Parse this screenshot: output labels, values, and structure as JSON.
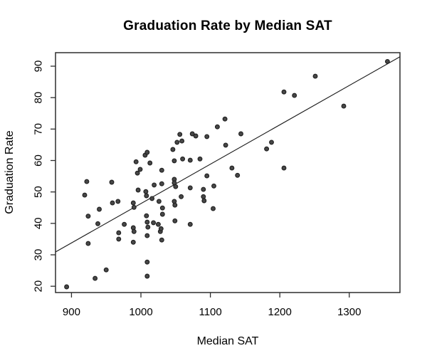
{
  "chart_data": {
    "type": "scatter",
    "title": "Graduation Rate by Median SAT",
    "xlabel": "Median SAT",
    "ylabel": "Graduation Rate",
    "xlim": [
      877,
      1373
    ],
    "ylim": [
      18,
      94.3
    ],
    "x_ticks": [
      900,
      1000,
      1100,
      1200,
      1300
    ],
    "y_ticks": [
      20,
      30,
      40,
      50,
      60,
      70,
      80,
      90
    ],
    "grid": false,
    "legend": "none",
    "marker": "filled-circle",
    "points": [
      [
        893,
        19.8
      ],
      [
        919,
        49
      ],
      [
        922,
        53.3
      ],
      [
        924,
        42.3
      ],
      [
        924,
        33.6
      ],
      [
        934,
        22.5
      ],
      [
        938,
        39.9
      ],
      [
        940,
        44.5
      ],
      [
        950,
        25.2
      ],
      [
        958,
        53.1
      ],
      [
        959,
        46.5
      ],
      [
        967,
        47
      ],
      [
        968,
        37
      ],
      [
        968,
        35
      ],
      [
        976,
        39.7
      ],
      [
        989,
        46.5
      ],
      [
        989,
        38.6
      ],
      [
        989,
        34
      ],
      [
        990,
        45.1
      ],
      [
        990,
        37.4
      ],
      [
        993,
        59.6
      ],
      [
        995,
        56
      ],
      [
        996,
        50.6
      ],
      [
        999,
        57.2
      ],
      [
        1006,
        61.7
      ],
      [
        1007,
        50.1
      ],
      [
        1008,
        48.8
      ],
      [
        1008,
        42.4
      ],
      [
        1009,
        62.6
      ],
      [
        1009,
        40.4
      ],
      [
        1009,
        36.1
      ],
      [
        1009,
        27.7
      ],
      [
        1009,
        23.2
      ],
      [
        1010,
        38.8
      ],
      [
        1013,
        59.2
      ],
      [
        1016,
        47.9
      ],
      [
        1018,
        40.2
      ],
      [
        1019,
        52.2
      ],
      [
        1025,
        39.7
      ],
      [
        1026,
        47
      ],
      [
        1028,
        37.4
      ],
      [
        1029,
        38.3
      ],
      [
        1030,
        56.9
      ],
      [
        1030,
        52.6
      ],
      [
        1030,
        34.7
      ],
      [
        1031,
        44.9
      ],
      [
        1031,
        42.9
      ],
      [
        1046,
        63.5
      ],
      [
        1048,
        59.9
      ],
      [
        1048,
        54
      ],
      [
        1048,
        52.9
      ],
      [
        1048,
        47
      ],
      [
        1049,
        45.8
      ],
      [
        1049,
        40.8
      ],
      [
        1050,
        51.7
      ],
      [
        1052,
        65.8
      ],
      [
        1056,
        68.3
      ],
      [
        1058,
        48.5
      ],
      [
        1059,
        66.2
      ],
      [
        1060,
        60.5
      ],
      [
        1071,
        60.1
      ],
      [
        1071,
        51.3
      ],
      [
        1071,
        39.7
      ],
      [
        1074,
        68.5
      ],
      [
        1079,
        67.8
      ],
      [
        1085,
        60.5
      ],
      [
        1090,
        50.8
      ],
      [
        1090,
        48.5
      ],
      [
        1091,
        47.2
      ],
      [
        1095,
        67.6
      ],
      [
        1095,
        55.1
      ],
      [
        1104,
        44.7
      ],
      [
        1105,
        51.9
      ],
      [
        1110,
        70.7
      ],
      [
        1121,
        73.2
      ],
      [
        1122,
        64.9
      ],
      [
        1131,
        57.6
      ],
      [
        1139,
        55.3
      ],
      [
        1144,
        68.5
      ],
      [
        1181,
        63.7
      ],
      [
        1188,
        65.8
      ],
      [
        1206,
        81.8
      ],
      [
        1206,
        57.6
      ],
      [
        1221,
        80.7
      ],
      [
        1251,
        86.8
      ],
      [
        1292,
        77.3
      ],
      [
        1355,
        91.5
      ]
    ],
    "trend_line": {
      "x1": 877,
      "y1": 30.9,
      "x2": 1373,
      "y2": 93.0
    },
    "colors": {
      "point_fill": "#474747",
      "point_stroke": "#1f1f1f",
      "trend": "#1a1a1a",
      "axis": "#2e2e2e",
      "text": "#000000",
      "background": "#ffffff"
    }
  }
}
